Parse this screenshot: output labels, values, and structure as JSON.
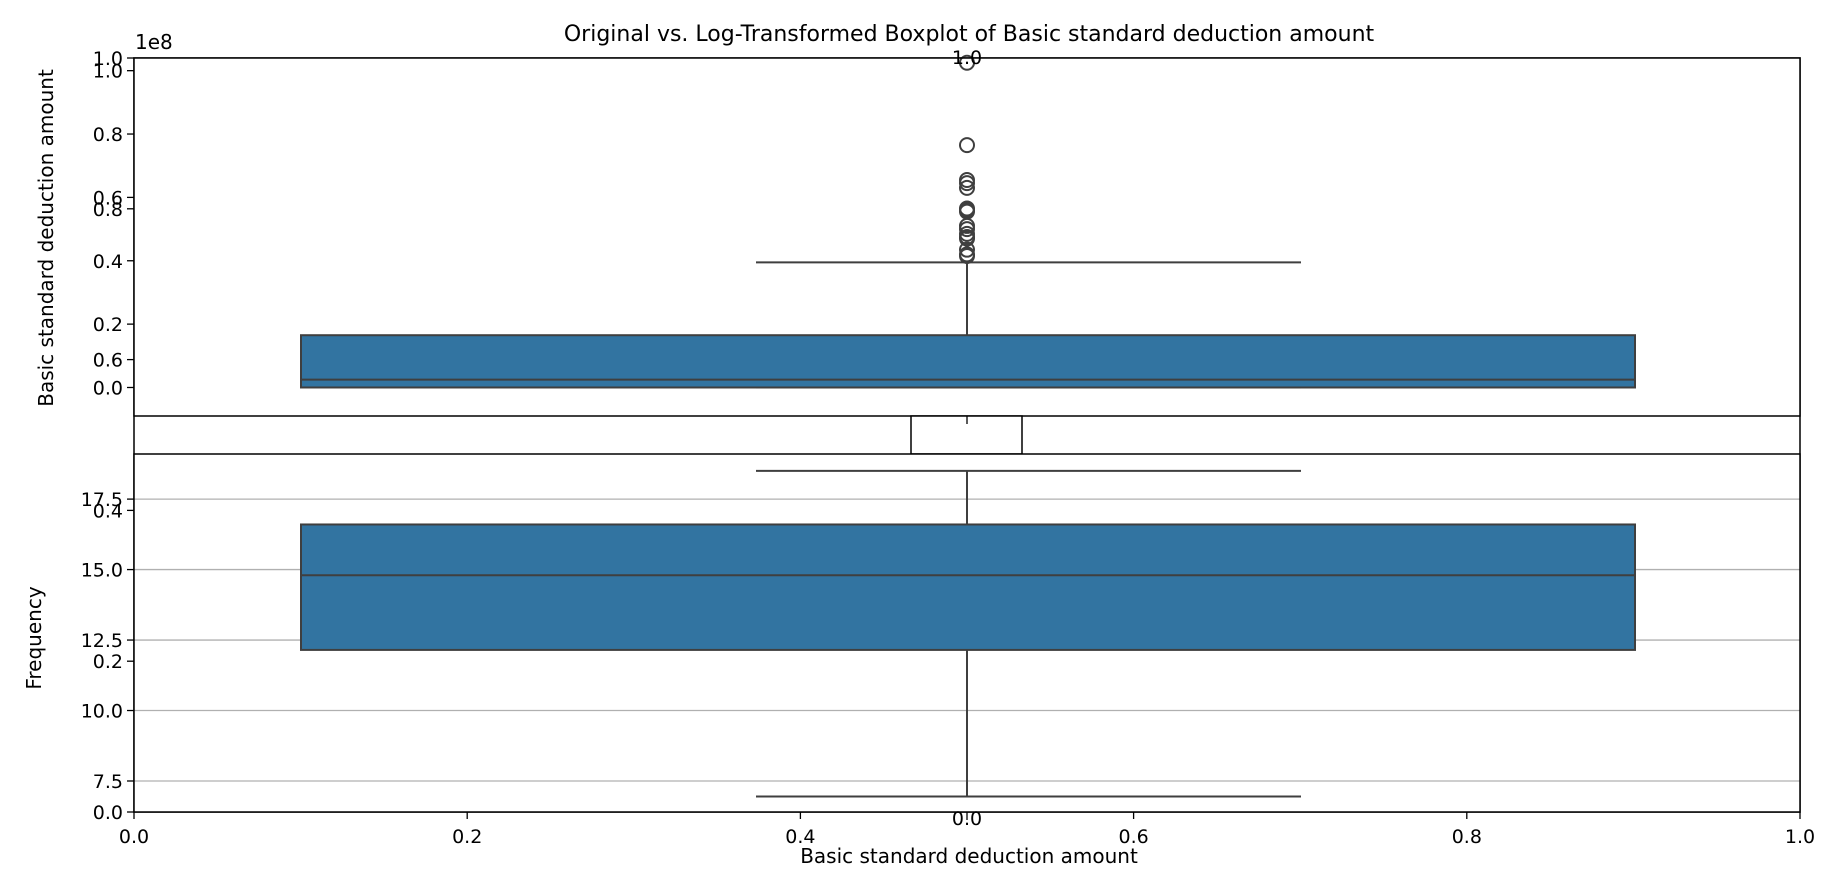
{
  "title": "Original vs. Log-Transformed Boxplot of Basic standard deduction amount",
  "colors": {
    "box_fill": "#3274a1",
    "box_edge": "#3f3f3f",
    "grid": "#b0b0b0",
    "axis": "#000000"
  },
  "figure_axes": {
    "xlabel": "Basic standard deduction amount",
    "ylabel": "Frequency",
    "xlim": [
      0,
      1
    ],
    "ylim": [
      0,
      1
    ],
    "x_ticks": [
      "0.0",
      "0.2",
      "0.4",
      "0.6",
      "0.8",
      "1.0"
    ],
    "y_ticks": [
      "0.0",
      "0.2",
      "0.4",
      "0.6",
      "0.8",
      "1.0"
    ]
  },
  "chart_data": [
    {
      "type": "box",
      "panel": "original",
      "ylabel": "Basic standard deduction amount",
      "offset_text": "1e8",
      "ylim": [
        -0.09,
        1.04
      ],
      "y_ticks": [
        0.0,
        0.2,
        0.4,
        0.6,
        0.8,
        1.0
      ],
      "x_ticks": [
        "0.0"
      ],
      "top_tick_label": "1.0",
      "whisker_low": 0.0,
      "q1": 0.0,
      "median": 0.025,
      "q3": 0.165,
      "whisker_high": 0.395,
      "outliers": [
        1.025,
        0.765,
        0.655,
        0.645,
        0.63,
        0.565,
        0.56,
        0.555,
        0.51,
        0.5,
        0.485,
        0.475,
        0.47,
        0.435,
        0.42,
        0.415
      ],
      "grid": false
    },
    {
      "type": "box",
      "panel": "log-transformed",
      "ylim": [
        6.4,
        19.1
      ],
      "y_ticks": [
        7.5,
        10.0,
        12.5,
        15.0,
        17.5
      ],
      "y_tick_labels": [
        "7.5",
        "10.0",
        "12.5",
        "15.0",
        "17.5"
      ],
      "x_ticks": [
        "0.0",
        "0.2",
        "0.4",
        "0.6",
        "0.8",
        "1.0"
      ],
      "whisker_low": 6.95,
      "q1": 12.15,
      "median": 14.8,
      "q3": 16.6,
      "whisker_high": 18.5,
      "outliers": [],
      "grid": true
    }
  ]
}
